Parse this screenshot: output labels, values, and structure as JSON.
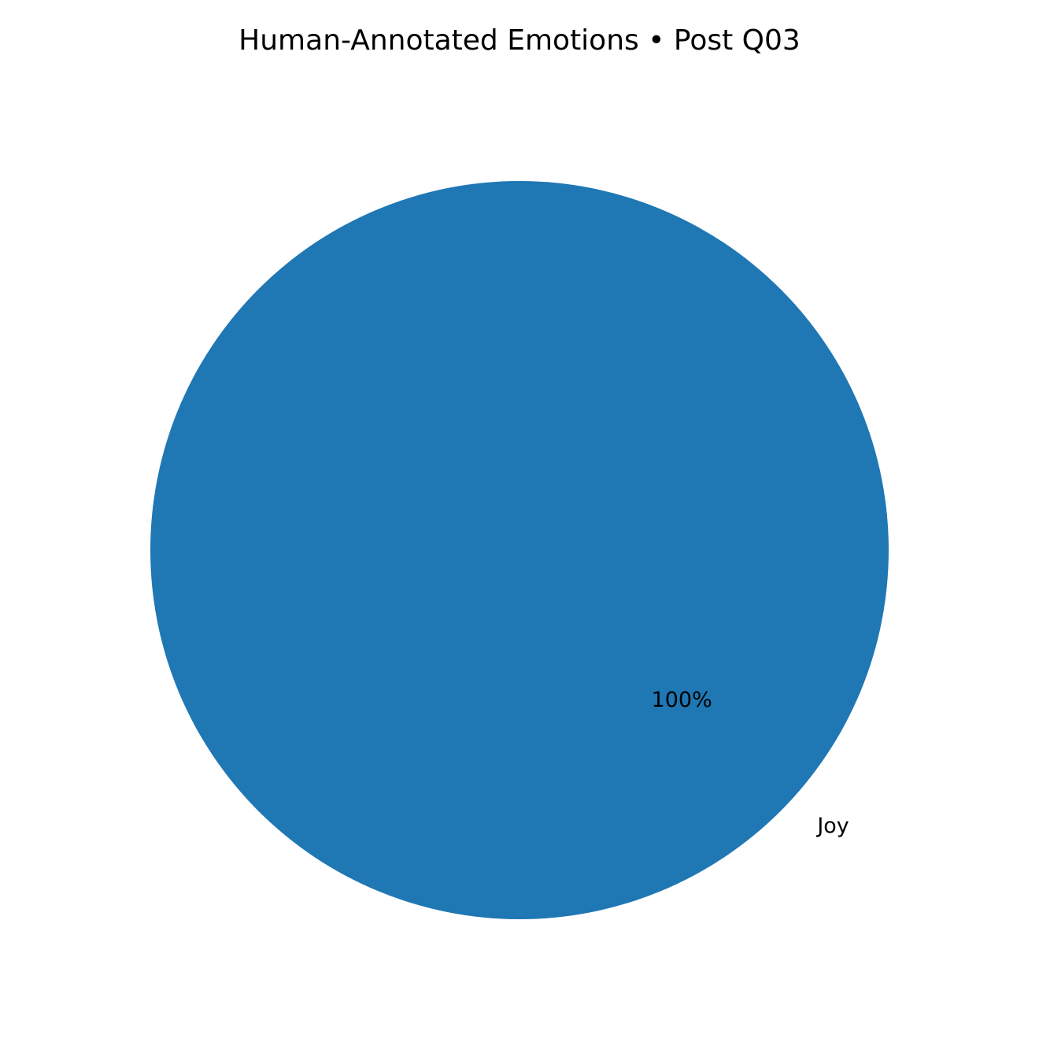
{
  "chart_data": {
    "type": "pie",
    "title": "Human-Annotated Emotions • Post Q03",
    "slices": [
      {
        "label": "Joy",
        "value": 100,
        "percent_label": "100%",
        "color": "#1f77b4"
      }
    ],
    "legend": "none",
    "start_angle": "0 degrees (counter-clockwise from positive x-axis)"
  }
}
